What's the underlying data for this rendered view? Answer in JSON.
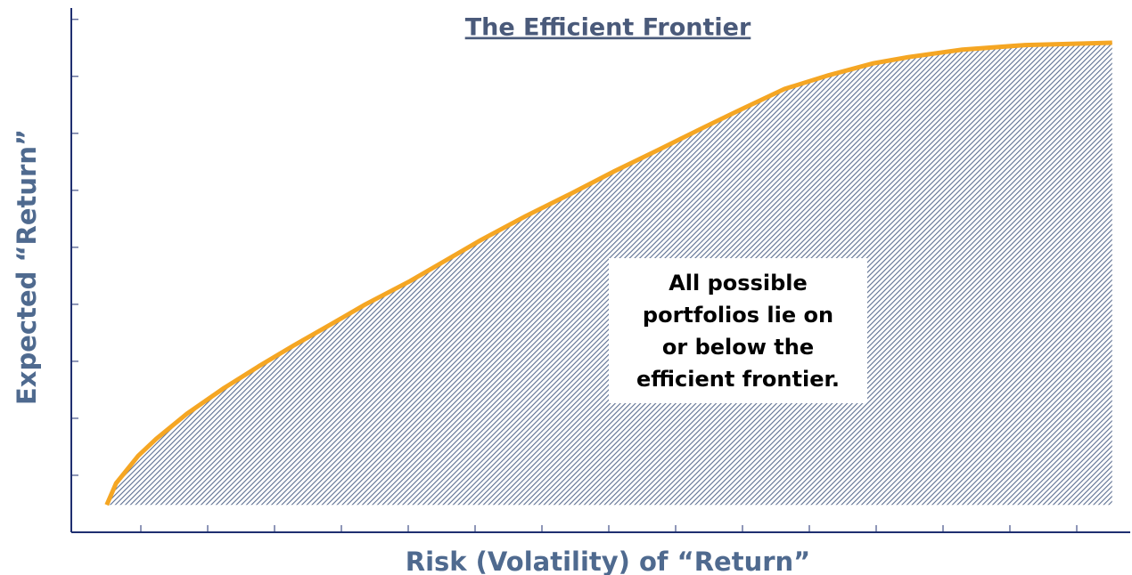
{
  "chart_data": {
    "type": "area",
    "title": "The Efficient Frontier",
    "x_label": "Risk (Volatility) of “Return”",
    "y_label": "Expected “Return”",
    "annotation": [
      "All possible",
      "portfolios lie on",
      "or below the",
      "efficient frontier."
    ],
    "x": [
      0.49,
      0.63,
      0.96,
      1.23,
      1.69,
      2.23,
      2.76,
      3.29,
      3.83,
      4.36,
      5.03,
      5.56,
      6.09,
      6.76,
      7.43,
      8.09,
      8.76,
      9.43,
      9.96,
      10.63,
      11.29,
      11.96,
      12.49,
      13.29,
      14.23,
      15.53
    ],
    "values": [
      0.48,
      0.86,
      1.34,
      1.64,
      2.08,
      2.52,
      2.91,
      3.28,
      3.64,
      4.0,
      4.41,
      4.77,
      5.13,
      5.55,
      5.94,
      6.34,
      6.72,
      7.11,
      7.41,
      7.78,
      8.02,
      8.23,
      8.34,
      8.47,
      8.55,
      8.59
    ],
    "color": "#f5a623",
    "fill_color": "#5d6f91",
    "xlim": [
      0,
      15.8
    ],
    "ylim": [
      0,
      9.2
    ],
    "xticks": [
      1,
      2,
      3,
      4,
      5,
      6,
      7,
      8,
      9,
      10,
      11,
      12,
      13,
      14,
      15
    ],
    "yticks": [
      1,
      2,
      3,
      4,
      5,
      6,
      7,
      8,
      9
    ]
  }
}
